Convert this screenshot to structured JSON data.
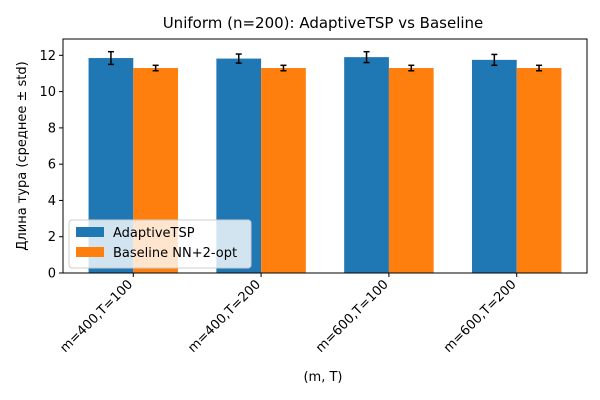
{
  "chart_data": {
    "type": "bar",
    "title": "Uniform (n=200): AdaptiveTSP vs Baseline",
    "xlabel": "(m, T)",
    "ylabel": "Длина тура (среднее ± std)",
    "categories": [
      "m=400,T=100",
      "m=400,T=200",
      "m=600,T=100",
      "m=600,T=200"
    ],
    "ylim": [
      0,
      12.9
    ],
    "yticks": [
      0,
      2,
      4,
      6,
      8,
      10,
      12
    ],
    "grid": false,
    "legend_position": "lower-left",
    "series": [
      {
        "name": "AdaptiveTSP",
        "color": "#1f77b4",
        "values": [
          11.85,
          11.82,
          11.9,
          11.75
        ],
        "errors": [
          0.35,
          0.25,
          0.3,
          0.3
        ]
      },
      {
        "name": "Baseline NN+2-opt",
        "color": "#ff7f0e",
        "values": [
          11.3,
          11.3,
          11.3,
          11.3
        ],
        "errors": [
          0.15,
          0.15,
          0.15,
          0.15
        ]
      }
    ]
  }
}
